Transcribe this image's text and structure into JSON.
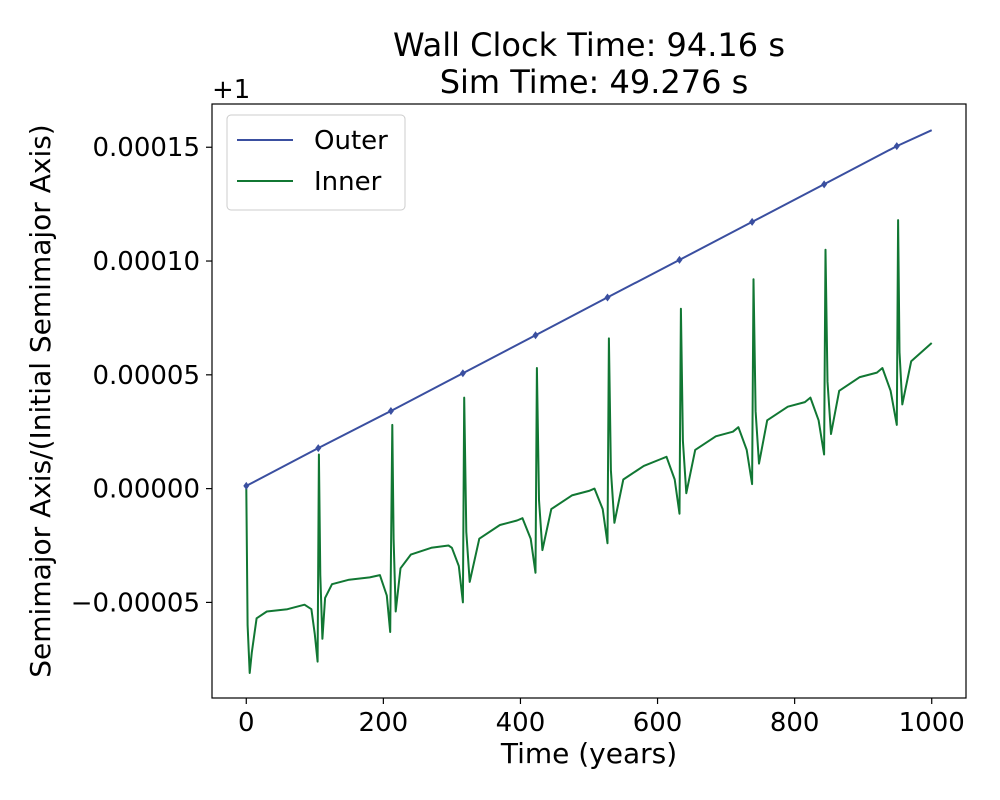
{
  "chart_data": {
    "type": "line",
    "title_line1": "Wall Clock Time: 94.16 s",
    "title_line2": "Sim Time: 49.276 s",
    "xlabel": "Time (years)",
    "ylabel": "Semimajor Axis/(Initial Semimajor Axis)",
    "y_offset_label": "+1",
    "xlim": [
      -50,
      1050
    ],
    "ylim": [
      -9.2e-05,
      0.000169
    ],
    "x_ticks": [
      0,
      200,
      400,
      600,
      800,
      1000
    ],
    "x_tick_labels": [
      "0",
      "200",
      "400",
      "600",
      "800",
      "1000"
    ],
    "y_ticks": [
      -5e-05,
      0.0,
      5e-05,
      0.0001,
      0.00015
    ],
    "y_tick_labels": [
      "−0.00005",
      "0.00000",
      "0.00005",
      "0.00010",
      "0.00015"
    ],
    "legend_position": "upper-left",
    "grid": false,
    "series": [
      {
        "name": "Outer",
        "color": "#3a4fa0",
        "x": [
          0,
          105,
          211,
          316,
          422,
          527,
          632,
          738,
          843,
          949,
          1000
        ],
        "y": [
          1.2e-06,
          1.78e-05,
          3.41e-05,
          5.07e-05,
          6.74e-05,
          8.4e-05,
          0.0001005,
          0.0001172,
          0.0001337,
          0.0001505,
          0.0001575
        ],
        "markers": [
          0,
          105,
          211,
          316,
          422,
          527,
          632,
          738,
          843,
          949
        ]
      },
      {
        "name": "Inner",
        "color": "#117733",
        "x": [
          0,
          2,
          5,
          8,
          15,
          30,
          60,
          85,
          95,
          100,
          104,
          106,
          108,
          111,
          115,
          125,
          150,
          180,
          195,
          205,
          210,
          213,
          215,
          218,
          225,
          240,
          270,
          295,
          300,
          310,
          316,
          318,
          321,
          326,
          340,
          370,
          395,
          403,
          415,
          422,
          424,
          427,
          432,
          445,
          475,
          500,
          508,
          520,
          527,
          529,
          532,
          537,
          550,
          580,
          605,
          613,
          625,
          632,
          634,
          637,
          642,
          655,
          685,
          710,
          718,
          730,
          738,
          740,
          743,
          748,
          760,
          790,
          815,
          823,
          835,
          843,
          845,
          848,
          853,
          865,
          895,
          920,
          928,
          940,
          949,
          951,
          953,
          957,
          970,
          1000
        ],
        "y": [
          0.0,
          -6e-05,
          -8.1e-05,
          -7.2e-05,
          -5.7e-05,
          -5.4e-05,
          -5.3e-05,
          -5.1e-05,
          -5.3e-05,
          -6.4e-05,
          -7.6e-05,
          1.5e-05,
          -3.8e-05,
          -6.6e-05,
          -4.8e-05,
          -4.2e-05,
          -4e-05,
          -3.9e-05,
          -3.8e-05,
          -4.7e-05,
          -6.3e-05,
          2.8e-05,
          -2.2e-05,
          -5.4e-05,
          -3.5e-05,
          -2.9e-05,
          -2.6e-05,
          -2.5e-05,
          -2.6e-05,
          -3.4e-05,
          -5e-05,
          4e-05,
          -1.9e-05,
          -4.1e-05,
          -2.2e-05,
          -1.6e-05,
          -1.4e-05,
          -1.3e-05,
          -2.2e-05,
          -3.7e-05,
          5.3e-05,
          -5e-06,
          -2.7e-05,
          -9e-06,
          -3e-06,
          -1e-06,
          0.0,
          -9e-06,
          -2.4e-05,
          6.6e-05,
          8e-06,
          -1.5e-05,
          4e-06,
          1e-05,
          1.3e-05,
          1.4e-05,
          4e-06,
          -1.1e-05,
          7.9e-05,
          2.1e-05,
          -2e-06,
          1.7e-05,
          2.3e-05,
          2.5e-05,
          2.7e-05,
          1.7e-05,
          2e-06,
          9.2e-05,
          3.4e-05,
          1.1e-05,
          3e-05,
          3.6e-05,
          3.8e-05,
          4e-05,
          3e-05,
          1.5e-05,
          0.000105,
          4.7e-05,
          2.4e-05,
          4.3e-05,
          4.9e-05,
          5.1e-05,
          5.3e-05,
          4.3e-05,
          2.8e-05,
          0.000118,
          6e-05,
          3.7e-05,
          5.6e-05,
          6.4e-05
        ]
      }
    ]
  }
}
